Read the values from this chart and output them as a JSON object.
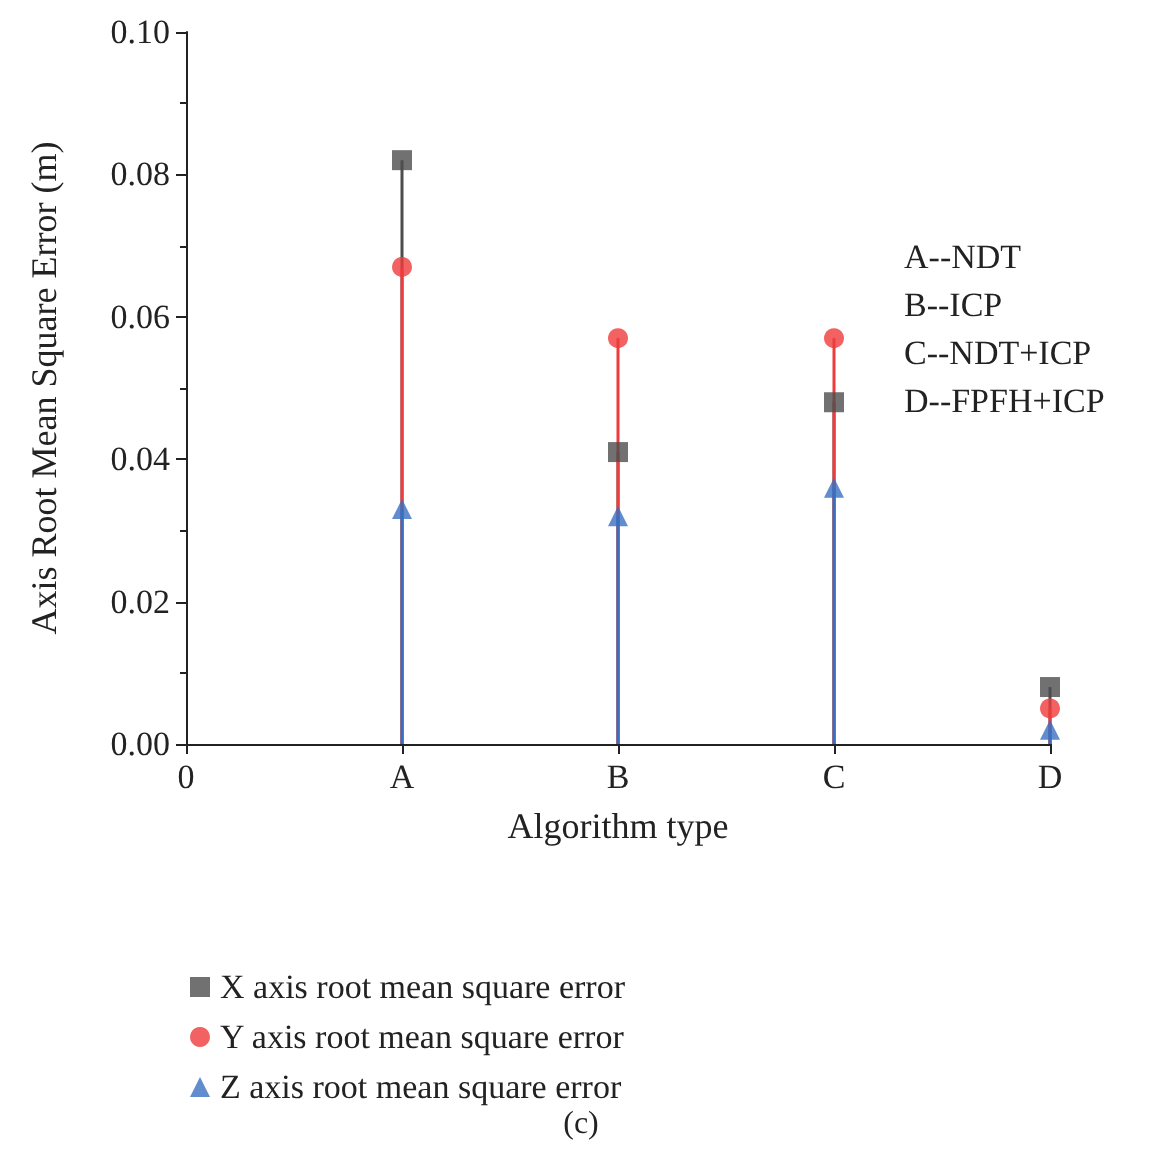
{
  "chart_data": {
    "type": "lollipop",
    "xlabel": "Algorithm type",
    "ylabel": "Axis Root Mean Square Error (m)",
    "categories": [
      "0",
      "A",
      "B",
      "C",
      "D"
    ],
    "series": [
      {
        "name": "X axis root mean square error",
        "color": "#4d4d4d",
        "marker": "square",
        "values": [
          null,
          0.082,
          0.041,
          0.048,
          0.008
        ]
      },
      {
        "name": "Y axis root mean square error",
        "color": "#ef3b3b",
        "marker": "circle",
        "values": [
          null,
          0.067,
          0.057,
          0.057,
          0.005
        ]
      },
      {
        "name": "Z axis root mean square error",
        "color": "#3a6fc0",
        "marker": "triangle",
        "values": [
          null,
          0.033,
          0.032,
          0.036,
          0.002
        ]
      }
    ],
    "ylim": [
      0,
      0.1
    ],
    "yticks": [
      {
        "value": 0,
        "label": "0.00"
      },
      {
        "value": 0.02,
        "label": "0.02"
      },
      {
        "value": 0.04,
        "label": "0.04"
      },
      {
        "value": 0.06,
        "label": "0.06"
      },
      {
        "value": 0.08,
        "label": "0.08"
      },
      {
        "value": 0.1,
        "label": "0.10"
      }
    ],
    "grid": false,
    "legend": "bottom",
    "annotations": [
      "A--NDT",
      "B--ICP",
      "C--NDT+ICP",
      "D--FPFH+ICP",
      "(c)"
    ]
  }
}
